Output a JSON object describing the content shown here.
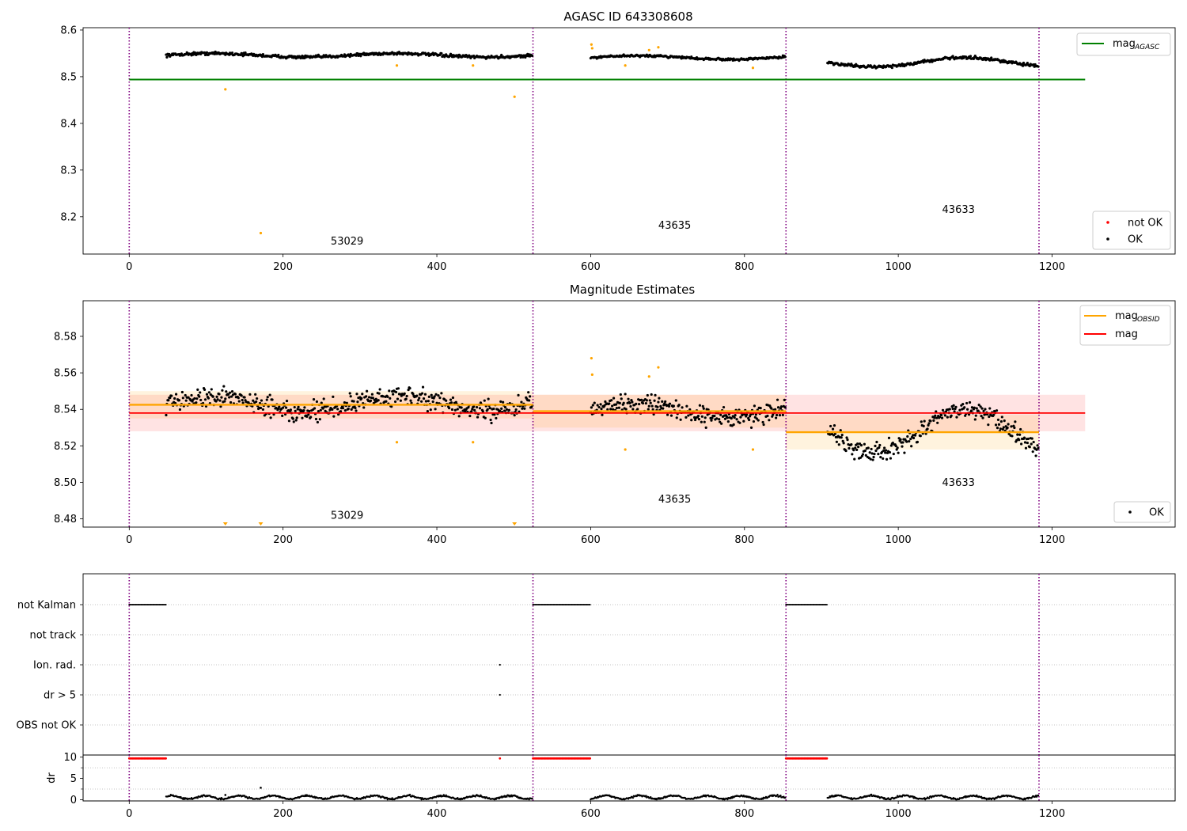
{
  "figure": {
    "title": "AGASC ID 643308608"
  },
  "chart_data": [
    {
      "id": "p1",
      "type": "scatter",
      "title": "",
      "xlim": [
        -60,
        1360
      ],
      "ylim": [
        8.12,
        8.605
      ],
      "yticks": [
        8.2,
        8.3,
        8.4,
        8.5,
        8.6
      ],
      "xticks": [
        0,
        200,
        400,
        600,
        800,
        1000,
        1200
      ],
      "vlines": [
        0,
        525,
        854,
        1183
      ],
      "mag_agasc": 8.494,
      "mag_agasc_x": [
        0,
        1243
      ],
      "obs_segments": [
        {
          "obsid": "53029",
          "x": [
            48,
            524
          ],
          "center": 8.546,
          "amp": 0.004,
          "noise": 0.004
        },
        {
          "obsid": "43635",
          "x": [
            600,
            853
          ],
          "center": 8.541,
          "amp": 0.004,
          "noise": 0.003
        },
        {
          "obsid": "43633",
          "x": [
            908,
            1182
          ],
          "center": 8.531,
          "amp": 0.01,
          "noise": 0.004
        }
      ],
      "not_ok_points": [
        [
          125,
          8.473
        ],
        [
          171,
          8.165
        ],
        [
          348,
          8.524
        ],
        [
          447,
          8.524
        ],
        [
          501,
          8.457
        ],
        [
          601,
          8.569
        ],
        [
          602,
          8.561
        ],
        [
          645,
          8.524
        ],
        [
          676,
          8.557
        ],
        [
          688,
          8.563
        ],
        [
          811,
          8.519
        ]
      ],
      "annotations": [
        {
          "text": "53029",
          "x": 262,
          "y": 8.14
        },
        {
          "text": "43635",
          "x": 688,
          "y": 8.174
        },
        {
          "text": "43633",
          "x": 1057,
          "y": 8.208
        }
      ],
      "legend_top": [
        {
          "label": "mag",
          "sub": "AGASC",
          "color": "#008000"
        }
      ],
      "legend_bottom": [
        {
          "label": "not OK",
          "color": "#ff0000"
        },
        {
          "label": "OK",
          "color": "#000000"
        }
      ]
    },
    {
      "id": "p2",
      "type": "scatter",
      "title": "Magnitude Estimates",
      "xlim": [
        -60,
        1360
      ],
      "ylim": [
        8.4755,
        8.5995
      ],
      "yticks": [
        8.48,
        8.5,
        8.52,
        8.54,
        8.56,
        8.58
      ],
      "xticks": [
        0,
        200,
        400,
        600,
        800,
        1000,
        1200
      ],
      "vlines": [
        0,
        525,
        854,
        1183
      ],
      "mag": 8.538,
      "mag_band": [
        8.528,
        8.548
      ],
      "mag_x": [
        0,
        1243
      ],
      "obs_mags": [
        {
          "x": [
            0,
            525
          ],
          "mag": 8.5425,
          "band": [
            8.535,
            8.55
          ]
        },
        {
          "x": [
            525,
            854
          ],
          "mag": 8.539,
          "band": [
            8.53,
            8.548
          ]
        },
        {
          "x": [
            854,
            1183
          ],
          "mag": 8.5275,
          "band": [
            8.518,
            8.537
          ]
        }
      ],
      "obs_segments": [
        {
          "obsid": "53029",
          "x": [
            48,
            524
          ],
          "center": 8.543,
          "amp": 0.004,
          "noise": 0.0065
        },
        {
          "obsid": "43635",
          "x": [
            600,
            853
          ],
          "center": 8.539,
          "amp": 0.004,
          "noise": 0.0065
        },
        {
          "obsid": "43633",
          "x": [
            908,
            1182
          ],
          "center": 8.528,
          "amp": 0.012,
          "noise": 0.006
        }
      ],
      "not_ok_points": [
        [
          348,
          8.522
        ],
        [
          447,
          8.522
        ],
        [
          601,
          8.568
        ],
        [
          602,
          8.559
        ],
        [
          645,
          8.518
        ],
        [
          676,
          8.558
        ],
        [
          688,
          8.563
        ],
        [
          811,
          8.518
        ]
      ],
      "low_markers": [
        125,
        171,
        501
      ],
      "annotations": [
        {
          "text": "53029",
          "x": 262,
          "y": 8.48
        },
        {
          "text": "43635",
          "x": 688,
          "y": 8.489
        },
        {
          "text": "43633",
          "x": 1057,
          "y": 8.498
        }
      ],
      "legend_top": [
        {
          "label": "mag",
          "sub": "OBSID",
          "color": "#ffa500"
        },
        {
          "label": "mag",
          "sub": "",
          "color": "#ff0000"
        }
      ],
      "legend_bottom": [
        {
          "label": "OK",
          "color": "#000000"
        }
      ]
    },
    {
      "id": "p3",
      "type": "scatter",
      "title": "",
      "xlim": [
        -60,
        1360
      ],
      "categories": [
        "not Kalman",
        "not track",
        "Ion. rad.",
        "dr > 5",
        "OBS not OK"
      ],
      "not_kalman_ranges": [
        [
          0,
          48
        ],
        [
          525,
          600
        ],
        [
          854,
          908
        ]
      ],
      "ion_rad_points": [
        482
      ],
      "dr5_points": [
        482
      ]
    },
    {
      "id": "p4",
      "type": "scatter",
      "title": "",
      "xlim": [
        -60,
        1360
      ],
      "ylim": [
        -0.3,
        10.5
      ],
      "yticks": [
        0,
        5,
        10
      ],
      "xticks": [
        0,
        200,
        400,
        600,
        800,
        1000,
        1200
      ],
      "ylabel": "dr",
      "vlines": [
        0,
        525,
        854,
        1183
      ],
      "clipped_ranges": [
        [
          0,
          48
        ],
        [
          525,
          600
        ],
        [
          854,
          908
        ]
      ],
      "clipped_points": [
        482
      ],
      "dr_segments": [
        [
          48,
          524
        ],
        [
          600,
          853
        ],
        [
          908,
          1182
        ]
      ],
      "dr_spikes": [
        [
          125,
          1.1
        ],
        [
          171,
          2.8
        ],
        [
          501,
          1.0
        ]
      ]
    }
  ]
}
